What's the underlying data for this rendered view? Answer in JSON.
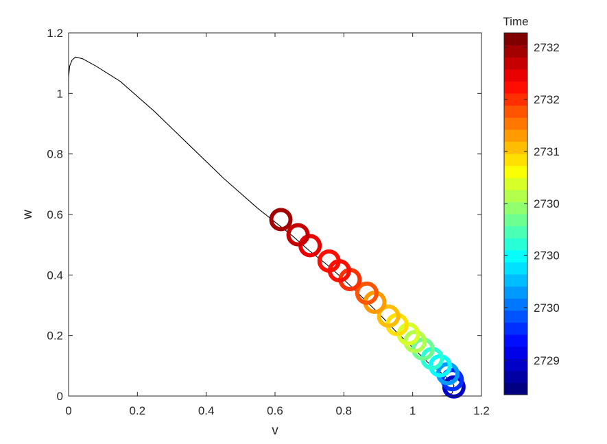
{
  "chart_data": {
    "type": "scatter",
    "xlabel": "v",
    "ylabel": "w",
    "xlim": [
      0,
      1.2
    ],
    "ylim": [
      0,
      1.2
    ],
    "x_ticks": [
      "0",
      "0.2",
      "0.4",
      "0.6",
      "0.8",
      "1",
      "1.2"
    ],
    "y_ticks": [
      "0",
      "0.2",
      "0.4",
      "0.6",
      "0.8",
      "1",
      "1.2"
    ],
    "x_tick_values": [
      0,
      0.2,
      0.4,
      0.6,
      0.8,
      1,
      1.2
    ],
    "y_tick_values": [
      0,
      0.2,
      0.4,
      0.6,
      0.8,
      1,
      1.2
    ],
    "grid": false,
    "trajectory": {
      "color": "#000000",
      "v": [
        0.0,
        0.0,
        0.003,
        0.01,
        0.02,
        0.04,
        0.08,
        0.15,
        0.25,
        0.35,
        0.45,
        0.55,
        0.6,
        0.65,
        0.7,
        0.75,
        0.8,
        0.85,
        0.9,
        0.95,
        1.0,
        1.05,
        1.08,
        1.1,
        1.12,
        1.115,
        1.1,
        1.08,
        1.06,
        1.08
      ],
      "w": [
        0.99,
        1.05,
        1.09,
        1.11,
        1.12,
        1.115,
        1.09,
        1.04,
        0.94,
        0.83,
        0.72,
        0.62,
        0.575,
        0.53,
        0.48,
        0.435,
        0.385,
        0.33,
        0.275,
        0.215,
        0.16,
        0.105,
        0.08,
        0.06,
        0.035,
        0.01,
        0.001,
        0.0,
        0.0,
        0.0
      ]
    },
    "points": {
      "v": [
        0.617,
        0.667,
        0.702,
        0.757,
        0.787,
        0.818,
        0.867,
        0.89,
        0.93,
        0.955,
        0.988,
        1.007,
        1.03,
        1.057,
        1.08,
        1.102,
        1.115,
        1.12
      ],
      "w": [
        0.583,
        0.533,
        0.497,
        0.446,
        0.414,
        0.385,
        0.34,
        0.31,
        0.264,
        0.236,
        0.205,
        0.18,
        0.155,
        0.124,
        0.1,
        0.074,
        0.054,
        0.03
      ],
      "t": [
        2732.3,
        2732.2,
        2732.1,
        2732.0,
        2731.9,
        2731.8,
        2731.65,
        2731.5,
        2731.3,
        2731.15,
        2731.0,
        2730.85,
        2730.6,
        2730.4,
        2730.2,
        2729.9,
        2729.5,
        2729.1
      ]
    },
    "colorbar": {
      "title": "Time",
      "tick_labels": [
        "2729",
        "2730",
        "2730",
        "2730",
        "2731",
        "2732",
        "2732"
      ],
      "tick_fracs": [
        0.095,
        0.241,
        0.385,
        0.528,
        0.672,
        0.816,
        0.96
      ],
      "range": [
        2728.8,
        2732.5
      ],
      "colormap": "jet",
      "levels": 30
    }
  }
}
